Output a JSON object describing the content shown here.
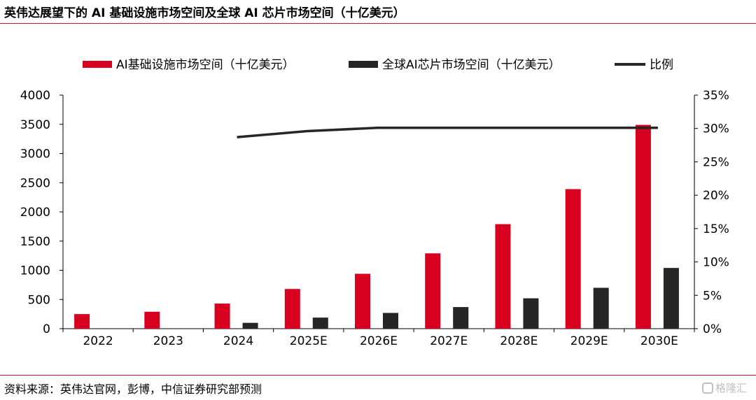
{
  "header": {
    "title": "英伟达展望下的 AI 基础设施市场空间及全球 AI 芯片市场空间（十亿美元）"
  },
  "footer": {
    "source": "资料来源：英伟达官网，彭博，中信证券研究部预测",
    "watermark": "格隆汇"
  },
  "colors": {
    "ai_infra": "#d7001f",
    "ai_chip": "#262626",
    "ratio": "#262626",
    "rule": "#c8102e"
  },
  "chart_data": {
    "type": "bar",
    "title": "英伟达展望下的 AI 基础设施市场空间及全球 AI 芯片市场空间（十亿美元）",
    "categories": [
      "2022",
      "2023",
      "2024",
      "2025E",
      "2026E",
      "2027E",
      "2028E",
      "2029E",
      "2030E"
    ],
    "series": [
      {
        "name": "AI基础设施市场空间（十亿美元）",
        "type": "bar",
        "axis": "left",
        "values": [
          250,
          290,
          430,
          680,
          940,
          1290,
          1790,
          2390,
          3490
        ]
      },
      {
        "name": "全球AI芯片市场空间（十亿美元）",
        "type": "bar",
        "axis": "left",
        "values": [
          null,
          null,
          100,
          190,
          270,
          370,
          520,
          700,
          1040
        ]
      },
      {
        "name": "比例",
        "type": "line",
        "axis": "right",
        "values": [
          null,
          null,
          0.287,
          0.296,
          0.301,
          0.301,
          0.301,
          0.301,
          0.301
        ]
      }
    ],
    "y_left": {
      "min": 0,
      "max": 4000,
      "step": 500,
      "ticks": [
        "0",
        "500",
        "1000",
        "1500",
        "2000",
        "2500",
        "3000",
        "3500",
        "4000"
      ]
    },
    "y_right": {
      "min": 0,
      "max": 0.35,
      "step": 0.05,
      "ticks": [
        "0%",
        "5%",
        "10%",
        "15%",
        "20%",
        "25%",
        "30%",
        "35%"
      ]
    },
    "legend": {
      "position": "top",
      "items": [
        "AI基础设施市场空间（十亿美元）",
        "全球AI芯片市场空间（十亿美元）",
        "比例"
      ]
    },
    "grid": false
  }
}
